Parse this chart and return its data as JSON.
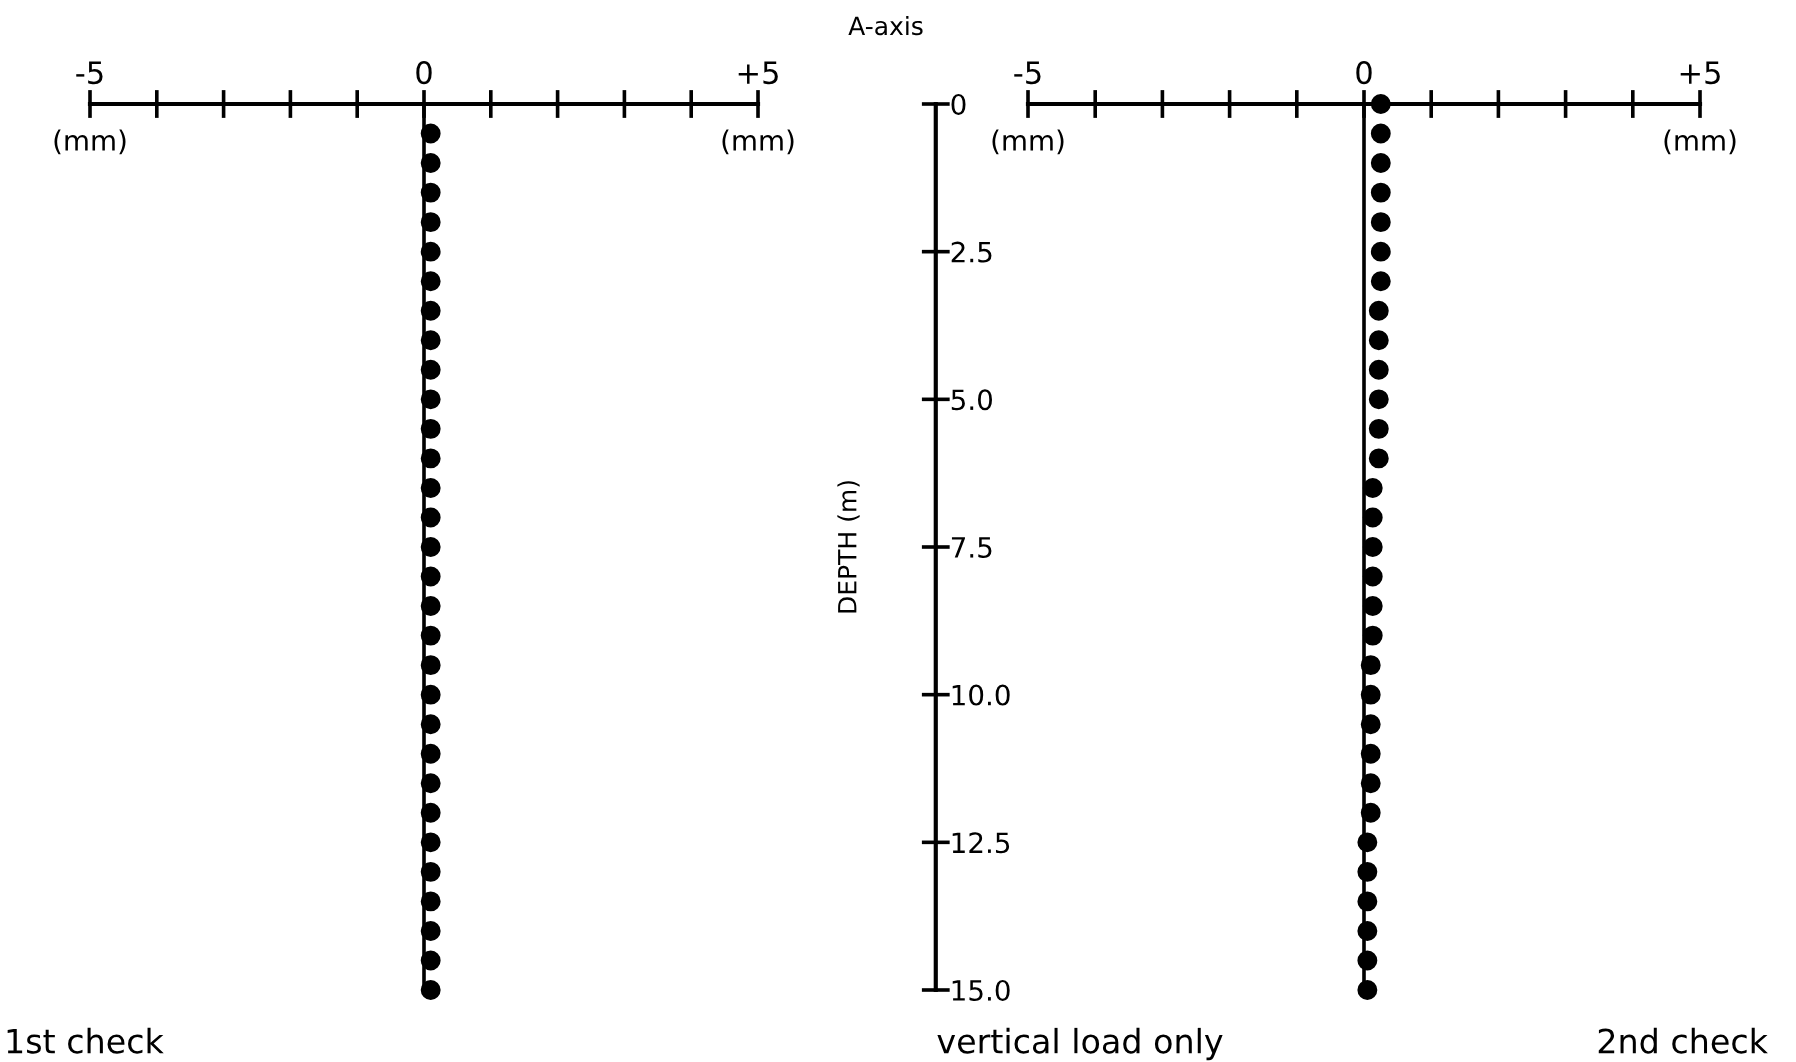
{
  "chart_data": [
    {
      "type": "scatter",
      "title": "1st check",
      "ylabel": "DEPTH (m)",
      "xlabel": "(mm)",
      "annotations": [
        "A-axis",
        "vertical load only"
      ],
      "x": [
        0.1,
        0.1,
        0.1,
        0.1,
        0.1,
        0.1,
        0.1,
        0.1,
        0.1,
        0.1,
        0.1,
        0.1,
        0.1,
        0.1,
        0.1,
        0.1,
        0.1,
        0.1,
        0.1,
        0.1,
        0.1,
        0.1,
        0.1,
        0.1,
        0.1,
        0.1,
        0.1,
        0.1,
        0.1,
        0.1
      ],
      "values": [
        0.5,
        1.0,
        1.5,
        2.0,
        2.5,
        3.0,
        3.5,
        4.0,
        4.5,
        5.0,
        5.5,
        6.0,
        6.5,
        7.0,
        7.5,
        8.0,
        8.5,
        9.0,
        9.5,
        10.0,
        10.5,
        11.0,
        11.5,
        12.0,
        12.5,
        13.0,
        13.5,
        14.0,
        14.5,
        15.0
      ],
      "color": "#000000",
      "marker": "circle",
      "xlim": [
        -5,
        5
      ],
      "xticks": [
        {
          "value": -5,
          "label": "-5"
        },
        {
          "value": -4,
          "label": null
        },
        {
          "value": -3,
          "label": null
        },
        {
          "value": -2,
          "label": null
        },
        {
          "value": -1,
          "label": null
        },
        0,
        {
          "value": 1,
          "label": null
        },
        {
          "value": 2,
          "label": null
        },
        {
          "value": 3,
          "label": null
        },
        {
          "value": 4,
          "label": null
        },
        {
          "value": 5,
          "label": "+5"
        }
      ],
      "ylim": [
        15,
        0
      ],
      "yticks": [
        0,
        2.5,
        {
          "value": 5,
          "label": "5.0"
        },
        7.5,
        {
          "value": 10,
          "label": "10.0"
        },
        12.5,
        {
          "value": 15,
          "label": "15.0"
        }
      ],
      "ref_lines": [
        {
          "axis": "x",
          "value": 0,
          "color": "#000000"
        }
      ],
      "grid": false,
      "legend": false
    },
    {
      "type": "scatter",
      "title": "2nd check",
      "xlabel": "(mm)",
      "tick_labels": "x",
      "x": [
        0.25,
        0.25,
        0.25,
        0.25,
        0.25,
        0.25,
        0.25,
        0.22,
        0.22,
        0.22,
        0.22,
        0.22,
        0.22,
        0.13,
        0.13,
        0.13,
        0.13,
        0.13,
        0.13,
        0.1,
        0.1,
        0.1,
        0.1,
        0.1,
        0.1,
        0.05,
        0.05,
        0.05,
        0.05,
        0.05,
        0.05
      ],
      "values": [
        0.0,
        0.5,
        1.0,
        1.5,
        2.0,
        2.5,
        3.0,
        3.5,
        4.0,
        4.5,
        5.0,
        5.5,
        6.0,
        6.5,
        7.0,
        7.5,
        8.0,
        8.5,
        9.0,
        9.5,
        10.0,
        10.5,
        11.0,
        11.5,
        12.0,
        12.5,
        13.0,
        13.5,
        14.0,
        14.5,
        15.0
      ],
      "color": "#000000",
      "marker": "circle",
      "xlim": [
        -5,
        5
      ],
      "xticks": [
        {
          "value": -5,
          "label": "-5"
        },
        {
          "value": -4,
          "label": null
        },
        {
          "value": -3,
          "label": null
        },
        {
          "value": -2,
          "label": null
        },
        {
          "value": -1,
          "label": null
        },
        0,
        {
          "value": 1,
          "label": null
        },
        {
          "value": 2,
          "label": null
        },
        {
          "value": 3,
          "label": null
        },
        {
          "value": 4,
          "label": null
        },
        {
          "value": 5,
          "label": "+5"
        }
      ],
      "ylim": [
        15,
        0
      ],
      "ref_lines": [
        {
          "axis": "x",
          "value": 0,
          "color": "#000000"
        }
      ],
      "grid": false,
      "legend": false
    }
  ]
}
